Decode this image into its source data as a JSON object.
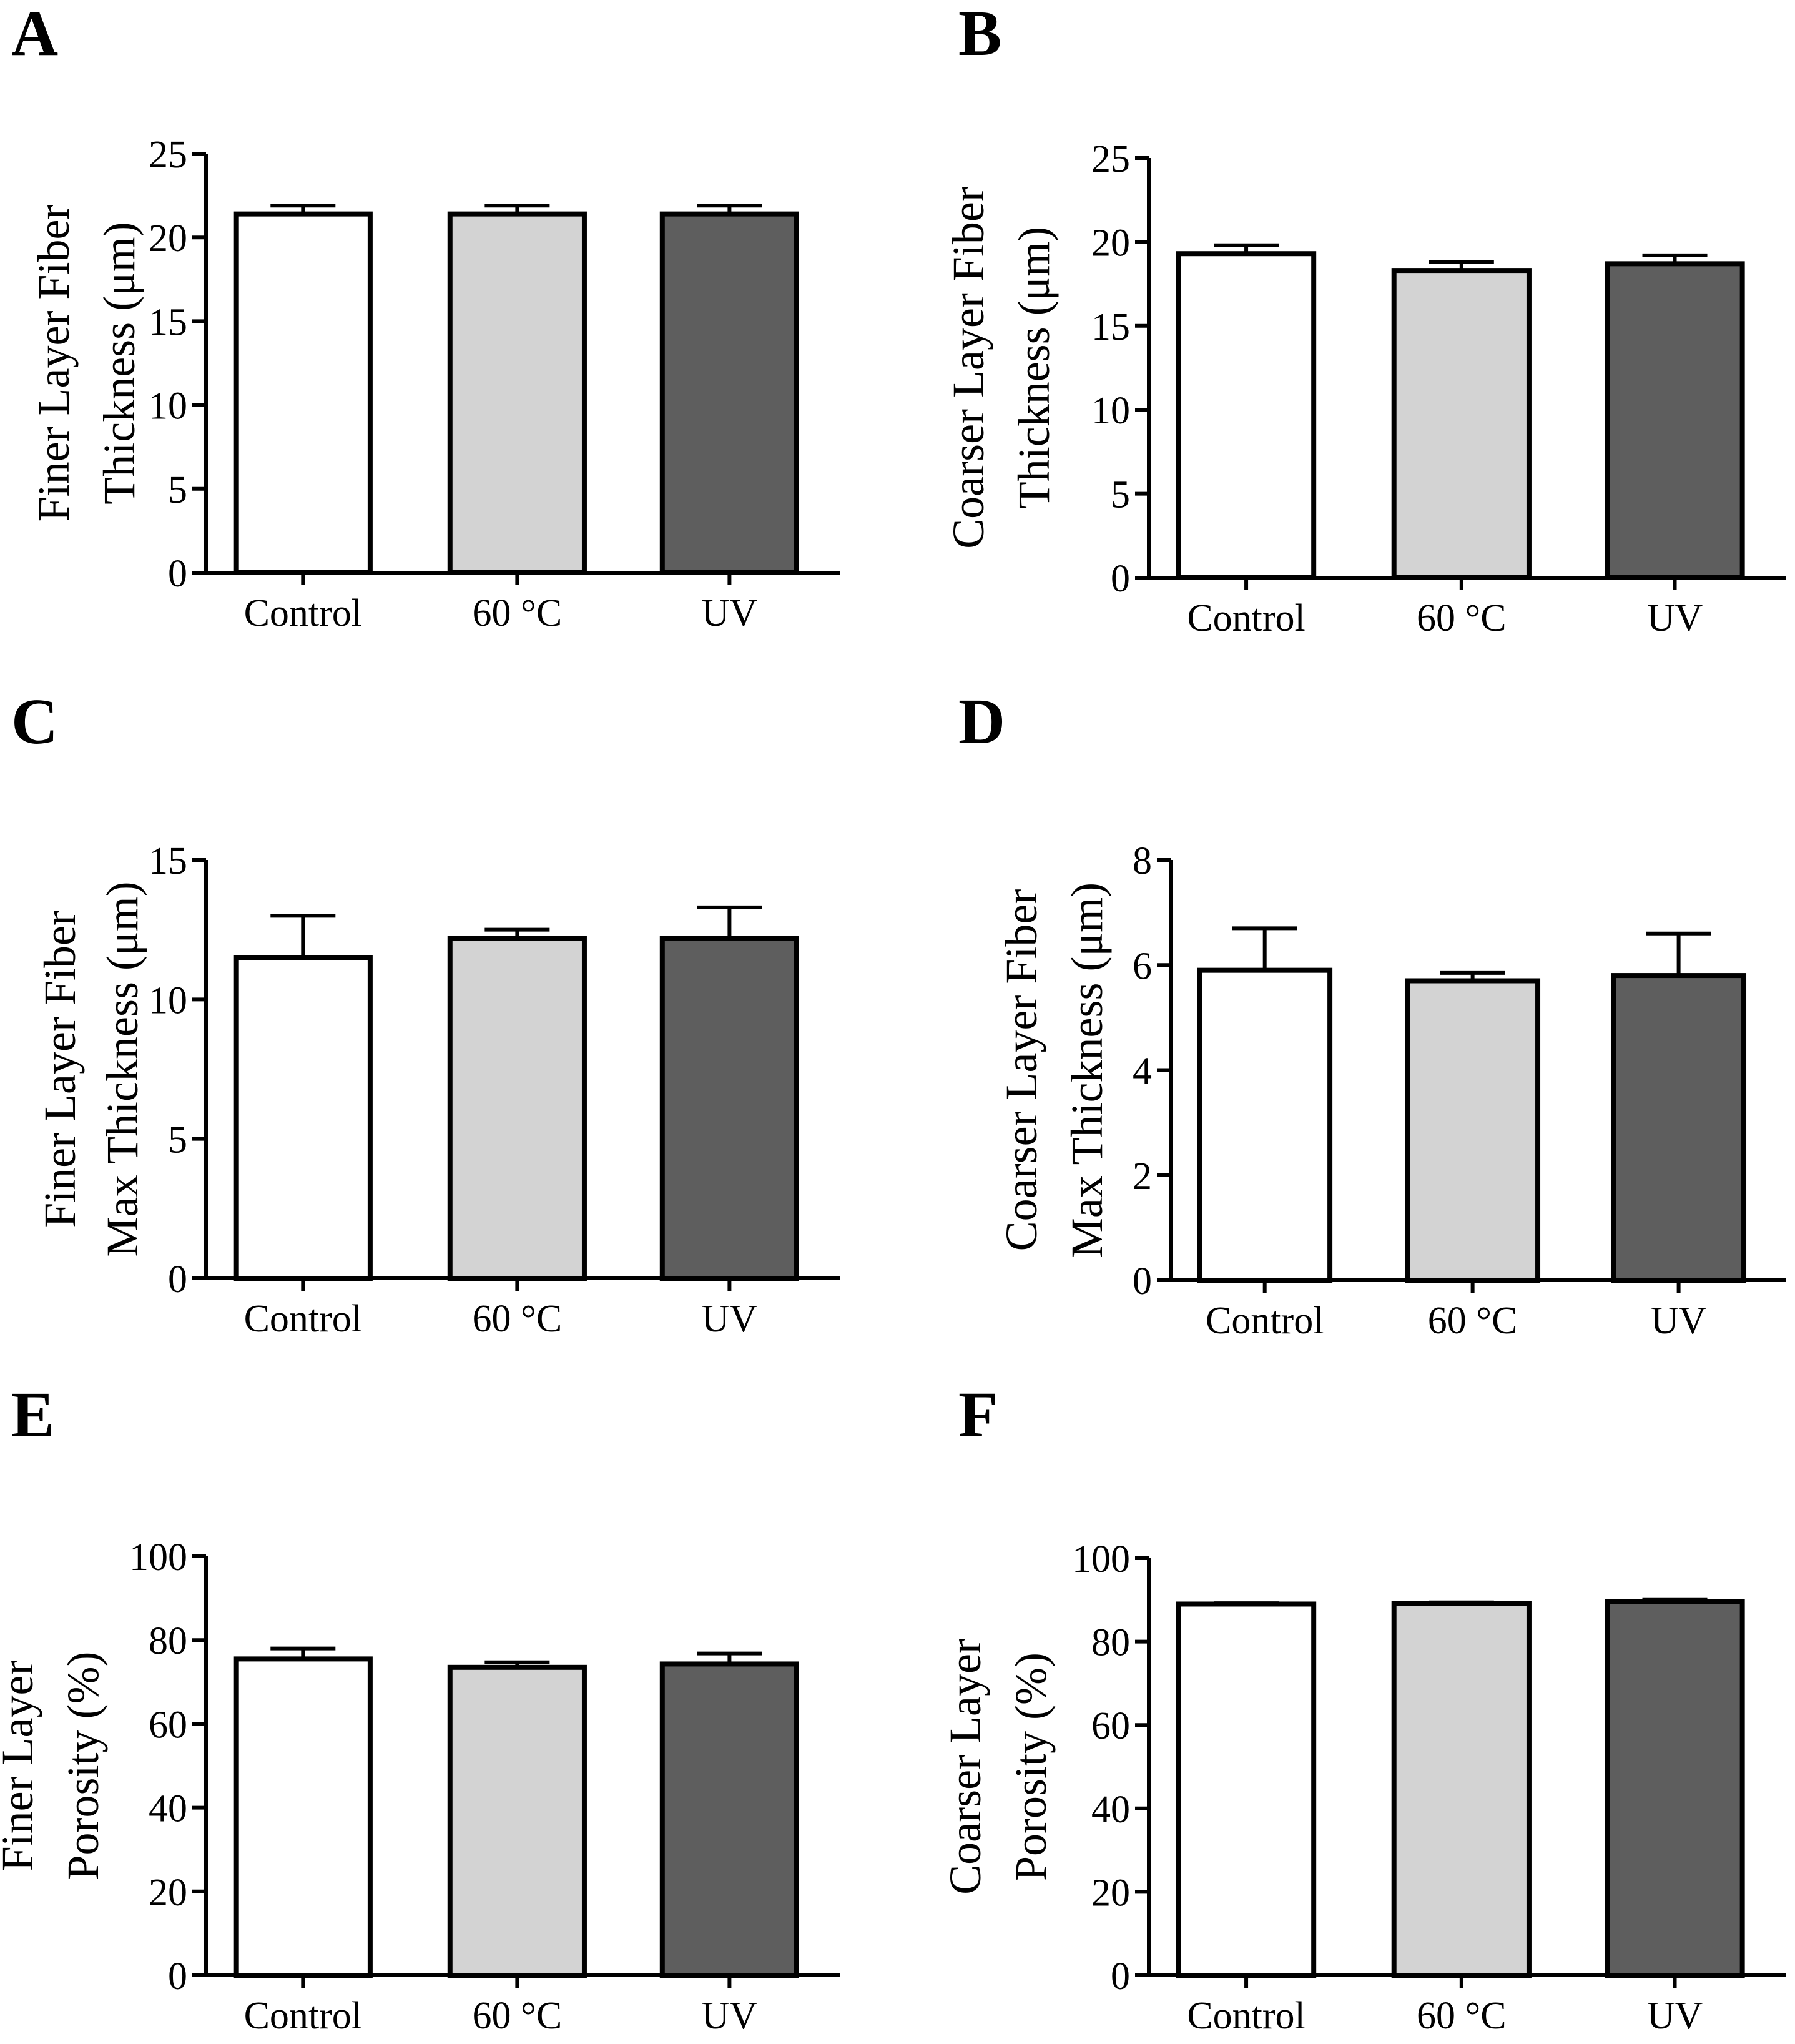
{
  "chart_data": [
    {
      "panel": "A",
      "type": "bar",
      "categories": [
        "Control",
        "60 °C",
        "UV"
      ],
      "values": [
        21.4,
        21.4,
        21.4
      ],
      "errors": [
        0.5,
        0.5,
        0.5
      ],
      "colors": [
        "#ffffff",
        "#d3d3d3",
        "#5e5e5e"
      ],
      "ylabel_lines": [
        "Finer Layer Fiber",
        "Thickness (μm)"
      ],
      "yticks": [
        "0",
        "5",
        "10",
        "15",
        "20",
        "25"
      ],
      "ylim": [
        0,
        25
      ]
    },
    {
      "panel": "B",
      "type": "bar",
      "categories": [
        "Control",
        "60 °C",
        "UV"
      ],
      "values": [
        19.3,
        18.3,
        18.7
      ],
      "errors": [
        0.5,
        0.5,
        0.5
      ],
      "colors": [
        "#ffffff",
        "#d3d3d3",
        "#5e5e5e"
      ],
      "ylabel_lines": [
        "Coarser Layer Fiber",
        "Thickness (μm)"
      ],
      "yticks": [
        "0",
        "5",
        "10",
        "15",
        "20",
        "25"
      ],
      "ylim": [
        0,
        25
      ]
    },
    {
      "panel": "C",
      "type": "bar",
      "categories": [
        "Control",
        "60 °C",
        "UV"
      ],
      "values": [
        11.5,
        12.2,
        12.2
      ],
      "errors": [
        1.5,
        0.3,
        1.1
      ],
      "colors": [
        "#ffffff",
        "#d3d3d3",
        "#5e5e5e"
      ],
      "ylabel_lines": [
        "Finer Layer Fiber",
        "Max Thickness (μm)"
      ],
      "yticks": [
        "0",
        "5",
        "10",
        "15"
      ],
      "ylim": [
        0,
        15
      ]
    },
    {
      "panel": "D",
      "type": "bar",
      "categories": [
        "Control",
        "60 °C",
        "UV"
      ],
      "values": [
        5.9,
        5.7,
        5.8
      ],
      "errors": [
        0.8,
        0.15,
        0.8
      ],
      "colors": [
        "#ffffff",
        "#d3d3d3",
        "#5e5e5e"
      ],
      "ylabel_lines": [
        "Coarser Layer Fiber",
        "Max Thickness (μm)"
      ],
      "yticks": [
        "0",
        "2",
        "4",
        "6",
        "8"
      ],
      "ylim": [
        0,
        8
      ]
    },
    {
      "panel": "E",
      "type": "bar",
      "categories": [
        "Control",
        "60 °C",
        "UV"
      ],
      "values": [
        75.5,
        73.5,
        74.3
      ],
      "errors": [
        2.5,
        1.2,
        2.5
      ],
      "colors": [
        "#ffffff",
        "#d3d3d3",
        "#5e5e5e"
      ],
      "ylabel_lines": [
        "Finer Layer",
        "Porosity (%)"
      ],
      "yticks": [
        "0",
        "20",
        "40",
        "60",
        "80",
        "100"
      ],
      "ylim": [
        0,
        100
      ]
    },
    {
      "panel": "F",
      "type": "bar",
      "categories": [
        "Control",
        "60 °C",
        "UV"
      ],
      "values": [
        89.0,
        89.2,
        89.6
      ],
      "errors": [
        0.2,
        0.2,
        0.4
      ],
      "colors": [
        "#ffffff",
        "#d3d3d3",
        "#5e5e5e"
      ],
      "ylabel_lines": [
        "Coarser Layer",
        "Porosity (%)"
      ],
      "yticks": [
        "0",
        "20",
        "40",
        "60",
        "80",
        "100"
      ],
      "ylim": [
        0,
        100
      ]
    }
  ]
}
